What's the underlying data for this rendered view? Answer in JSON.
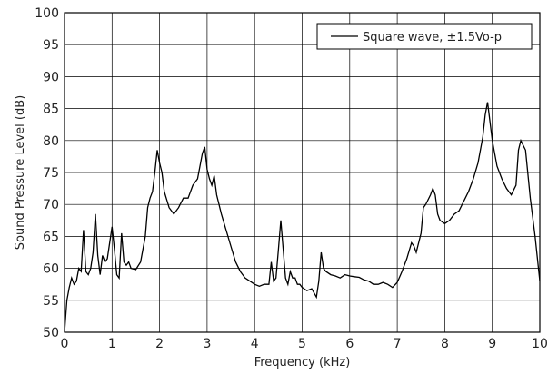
{
  "chart_data": {
    "type": "line",
    "title": "",
    "xlabel": "Frequency (kHz)",
    "ylabel": "Sound Pressure Level (dB)",
    "xlim": [
      0,
      10
    ],
    "ylim": [
      50,
      100
    ],
    "xticks": [
      0,
      1,
      2,
      3,
      4,
      5,
      6,
      7,
      8,
      9,
      10
    ],
    "yticks": [
      50,
      55,
      60,
      65,
      70,
      75,
      80,
      85,
      90,
      95,
      100
    ],
    "grid": true,
    "legend_position": "top-right",
    "line_color": "#000000",
    "series": [
      {
        "name": "Square wave, ±1.5Vo-p",
        "x": [
          0.0,
          0.05,
          0.1,
          0.15,
          0.2,
          0.25,
          0.3,
          0.35,
          0.4,
          0.45,
          0.5,
          0.55,
          0.6,
          0.65,
          0.7,
          0.75,
          0.8,
          0.85,
          0.9,
          0.95,
          1.0,
          1.05,
          1.1,
          1.15,
          1.2,
          1.25,
          1.3,
          1.35,
          1.4,
          1.5,
          1.6,
          1.7,
          1.75,
          1.8,
          1.85,
          1.9,
          1.95,
          2.0,
          2.05,
          2.1,
          2.2,
          2.3,
          2.4,
          2.5,
          2.6,
          2.7,
          2.8,
          2.9,
          2.95,
          3.0,
          3.05,
          3.1,
          3.15,
          3.2,
          3.3,
          3.4,
          3.5,
          3.6,
          3.7,
          3.8,
          3.9,
          4.0,
          4.1,
          4.2,
          4.3,
          4.35,
          4.4,
          4.45,
          4.5,
          4.55,
          4.6,
          4.65,
          4.7,
          4.75,
          4.8,
          4.85,
          4.9,
          4.95,
          5.0,
          5.1,
          5.2,
          5.3,
          5.35,
          5.4,
          5.45,
          5.5,
          5.6,
          5.7,
          5.8,
          5.9,
          6.0,
          6.1,
          6.2,
          6.3,
          6.4,
          6.5,
          6.6,
          6.7,
          6.8,
          6.9,
          7.0,
          7.1,
          7.2,
          7.3,
          7.35,
          7.4,
          7.5,
          7.55,
          7.6,
          7.7,
          7.75,
          7.8,
          7.85,
          7.9,
          8.0,
          8.1,
          8.2,
          8.3,
          8.4,
          8.5,
          8.6,
          8.7,
          8.8,
          8.85,
          8.9,
          9.0,
          9.1,
          9.2,
          9.3,
          9.4,
          9.5,
          9.55,
          9.6,
          9.7,
          9.8,
          9.9,
          10.0
        ],
        "values": [
          50.0,
          55.0,
          57.0,
          58.5,
          57.5,
          58.0,
          60.0,
          59.5,
          66.0,
          59.5,
          59.0,
          60.0,
          62.5,
          68.5,
          62.0,
          59.0,
          62.0,
          61.0,
          61.5,
          64.0,
          66.5,
          63.0,
          59.0,
          58.5,
          65.5,
          61.0,
          60.5,
          61.0,
          60.0,
          59.8,
          61.0,
          65.0,
          69.5,
          71.0,
          72.0,
          75.0,
          78.5,
          76.5,
          75.0,
          72.0,
          69.5,
          68.5,
          69.5,
          71.0,
          71.0,
          73.0,
          74.0,
          78.0,
          79.0,
          75.5,
          74.0,
          73.0,
          74.5,
          71.5,
          68.5,
          66.0,
          63.5,
          61.0,
          59.5,
          58.5,
          58.0,
          57.5,
          57.2,
          57.5,
          57.5,
          61.0,
          58.0,
          58.5,
          63.0,
          67.5,
          63.0,
          58.5,
          57.5,
          59.5,
          58.5,
          58.5,
          57.5,
          57.5,
          57.0,
          56.5,
          56.8,
          55.5,
          58.0,
          62.5,
          60.0,
          59.5,
          59.0,
          58.8,
          58.5,
          59.0,
          58.8,
          58.7,
          58.6,
          58.2,
          58.0,
          57.5,
          57.5,
          57.8,
          57.5,
          57.0,
          57.8,
          59.5,
          61.5,
          64.0,
          63.5,
          62.5,
          65.5,
          69.5,
          70.0,
          71.5,
          72.5,
          71.5,
          68.5,
          67.5,
          67.0,
          67.5,
          68.5,
          69.0,
          70.5,
          72.0,
          74.0,
          76.5,
          80.5,
          84.0,
          86.0,
          80.0,
          76.0,
          74.0,
          72.5,
          71.5,
          73.0,
          78.5,
          80.0,
          78.5,
          71.0,
          65.0,
          58.0
        ]
      }
    ]
  }
}
